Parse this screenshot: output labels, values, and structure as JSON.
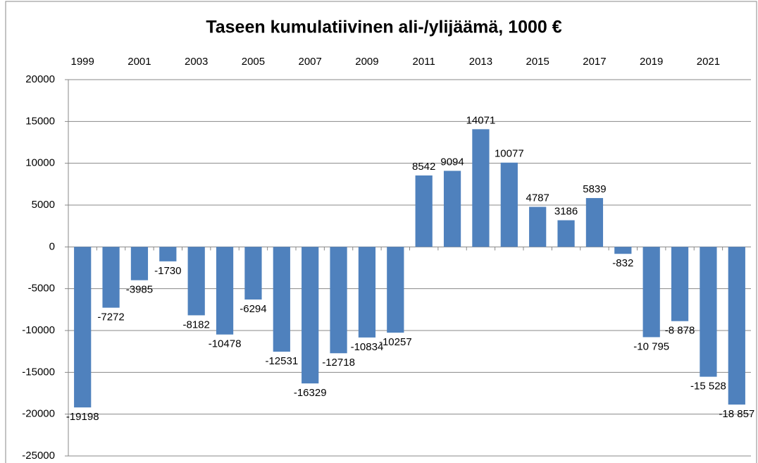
{
  "chart_data": {
    "type": "bar",
    "title": "Taseen kumulatiivinen ali-/ylijäämä, 1000 €",
    "categories": [
      "1999",
      null,
      "2001",
      null,
      "2003",
      null,
      "2005",
      null,
      "2007",
      null,
      "2009",
      null,
      "2011",
      null,
      "2013",
      null,
      "2015",
      null,
      "2017",
      null,
      "2019",
      null,
      "2021",
      null
    ],
    "values": [
      -19198,
      -7272,
      -3985,
      -1730,
      -8182,
      -10478,
      -6294,
      -12531,
      -16329,
      -12718,
      -10834,
      -10257,
      8542,
      9094,
      14071,
      10077,
      4787,
      3186,
      5839,
      -832,
      -10795,
      -8878,
      -15528,
      -18857
    ],
    "value_labels": [
      "-19198",
      "-7272",
      "-3985",
      "-1730",
      "-8182",
      "-10478",
      "-6294",
      "-12531",
      "-16329",
      "-12718",
      "-10834",
      "-10257",
      "8542",
      "9094",
      "14071",
      "10077",
      "4787",
      "3186",
      "5839",
      "-832",
      "-10 795",
      "-8 878",
      "-15 528",
      "-18 857"
    ],
    "color": "#4f81bd",
    "ylim": [
      -25000,
      20000
    ],
    "yticks": [
      -25000,
      -20000,
      -15000,
      -10000,
      -5000,
      0,
      5000,
      10000,
      15000,
      20000
    ],
    "grid": true
  }
}
